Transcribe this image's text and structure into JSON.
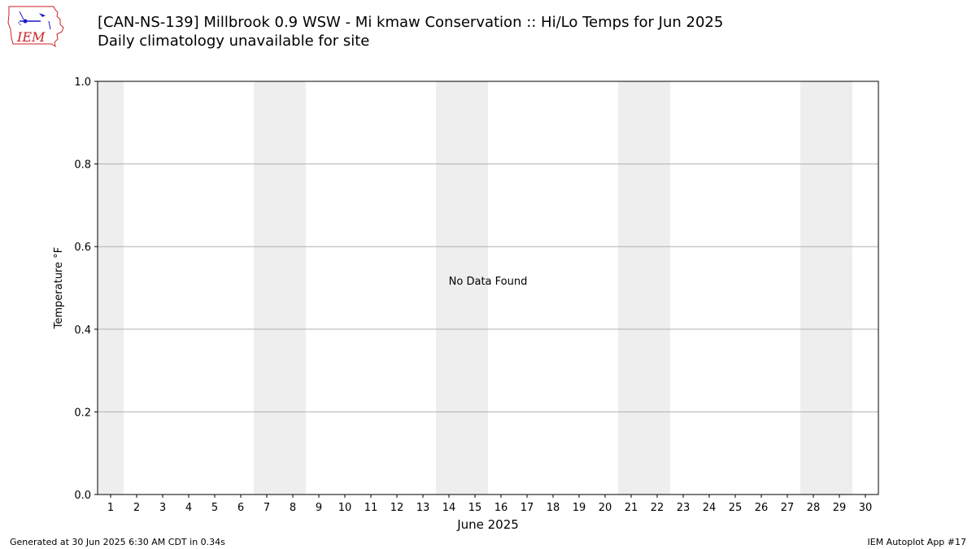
{
  "header": {
    "title": "[CAN-NS-139] Millbrook 0.9 WSW - Mi kmaw Conservation :: Hi/Lo Temps for Jun 2025",
    "subtitle": "Daily climatology unavailable for site"
  },
  "logo": {
    "text": "IEM",
    "icon": "iem-logo-icon"
  },
  "footer": {
    "generated": "Generated at 30 Jun 2025 6:30 AM CDT in 0.34s",
    "app": "IEM Autoplot App #17"
  },
  "colors": {
    "weekend_band": "#eeeeee",
    "grid": "#b0b0b0",
    "logo_red": "#cc2222",
    "logo_blue": "#1a1acc"
  },
  "chart_data": {
    "type": "bar",
    "title": "",
    "xlabel": "June 2025",
    "ylabel": "Temperature °F",
    "x_ticks": [
      "1",
      "2",
      "3",
      "4",
      "5",
      "6",
      "7",
      "8",
      "9",
      "10",
      "11",
      "12",
      "13",
      "14",
      "15",
      "16",
      "17",
      "18",
      "19",
      "20",
      "21",
      "22",
      "23",
      "24",
      "25",
      "26",
      "27",
      "28",
      "29",
      "30"
    ],
    "xlim": [
      0.5,
      30.5
    ],
    "ylim": [
      0.0,
      1.0
    ],
    "y_ticks": [
      "0.0",
      "0.2",
      "0.4",
      "0.6",
      "0.8",
      "1.0"
    ],
    "y_tick_values": [
      0.0,
      0.2,
      0.4,
      0.6,
      0.8,
      1.0
    ],
    "grid": "horizontal",
    "shaded_weekend_days": [
      1,
      7,
      8,
      14,
      15,
      21,
      22,
      28,
      29
    ],
    "annotation": "No Data Found",
    "series": []
  }
}
